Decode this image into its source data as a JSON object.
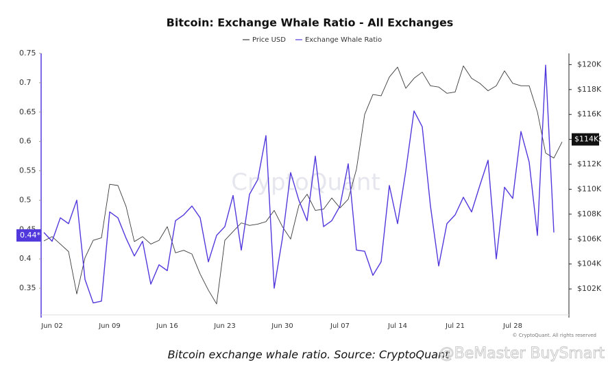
{
  "chart_data": {
    "type": "line",
    "title": "Bitcoin: Exchange Whale Ratio - All Exchanges",
    "categories": [
      null,
      "Jun 02",
      null,
      null,
      null,
      null,
      null,
      null,
      "Jun 09",
      null,
      null,
      null,
      null,
      null,
      null,
      "Jun 16",
      null,
      null,
      null,
      null,
      null,
      null,
      "Jun 23",
      null,
      null,
      null,
      null,
      null,
      null,
      "Jun 30",
      null,
      null,
      null,
      null,
      null,
      null,
      "Jul 07",
      null,
      null,
      null,
      null,
      null,
      null,
      "Jul 14",
      null,
      null,
      null,
      null,
      null,
      null,
      "Jul 21",
      null,
      null,
      null,
      null,
      null,
      null,
      "Jul 28",
      null,
      null,
      null,
      null,
      null,
      null
    ],
    "series": [
      {
        "name": "Price USD",
        "color": "#3a3a3a",
        "axis": "y2",
        "values": [
          105850,
          106200,
          105600,
          105000,
          101600,
          104500,
          105900,
          106100,
          110400,
          110300,
          108600,
          105800,
          106200,
          105600,
          105900,
          107000,
          104900,
          105100,
          104800,
          103200,
          101900,
          100800,
          105900,
          106600,
          107300,
          107100,
          107200,
          107400,
          108300,
          107000,
          106000,
          108700,
          109600,
          108300,
          108400,
          109300,
          108500,
          109200,
          111600,
          116000,
          117600,
          117500,
          119000,
          119800,
          118100,
          118900,
          119400,
          118300,
          118200,
          117700,
          117800,
          119900,
          118900,
          118500,
          117900,
          118300,
          119500,
          118500,
          118300,
          118300,
          116200,
          112900,
          112500,
          113800
        ]
      },
      {
        "name": "Exchange Whale Ratio",
        "color": "#5038dc",
        "axis": "y",
        "values": [
          0.445,
          0.43,
          0.47,
          0.46,
          0.5,
          0.365,
          0.325,
          0.328,
          0.48,
          0.47,
          0.435,
          0.405,
          0.43,
          0.357,
          0.39,
          0.38,
          0.465,
          0.475,
          0.49,
          0.47,
          0.395,
          0.44,
          0.455,
          0.508,
          0.415,
          0.51,
          0.535,
          0.61,
          0.35,
          0.435,
          0.547,
          0.5,
          0.465,
          0.575,
          0.455,
          0.465,
          0.49,
          0.562,
          0.415,
          0.413,
          0.372,
          0.395,
          0.525,
          0.46,
          0.55,
          0.652,
          0.625,
          0.49,
          0.388,
          0.46,
          0.475,
          0.505,
          0.48,
          0.525,
          0.568,
          0.4,
          0.522,
          0.503,
          0.617,
          0.565,
          0.44,
          0.73,
          0.445,
          null
        ]
      }
    ],
    "ylim": [
      0.3,
      0.75
    ],
    "yticks": [
      0.35,
      0.4,
      0.45,
      0.5,
      0.55,
      0.6,
      0.65,
      0.7,
      0.75
    ],
    "y2lim": [
      99700,
      120900
    ],
    "y2ticks": [
      {
        "value": 102000,
        "label": "$102K"
      },
      {
        "value": 104000,
        "label": "$104K"
      },
      {
        "value": 106000,
        "label": "$106K"
      },
      {
        "value": 108000,
        "label": "$108K"
      },
      {
        "value": 110000,
        "label": "$110K"
      },
      {
        "value": 112000,
        "label": "$112K"
      },
      {
        "value": 114000,
        "label": "$114K"
      },
      {
        "value": 116000,
        "label": "$116K"
      },
      {
        "value": 118000,
        "label": "$118K"
      },
      {
        "value": 120000,
        "label": "$120K"
      }
    ],
    "grid": false,
    "legend": "top",
    "annotations": [
      {
        "label": "0.44*",
        "value": 0.44,
        "axis": "y"
      },
      {
        "label": "$114K",
        "value": 114000,
        "axis": "y2"
      }
    ],
    "watermark": "CryptoQuant",
    "copyright": "© CryptoQuant. All rights reserved",
    "caption": "Bitcoin exchange whale ratio. Source: CryptoQuant",
    "overlay": "@BeMaster BuySmart"
  }
}
